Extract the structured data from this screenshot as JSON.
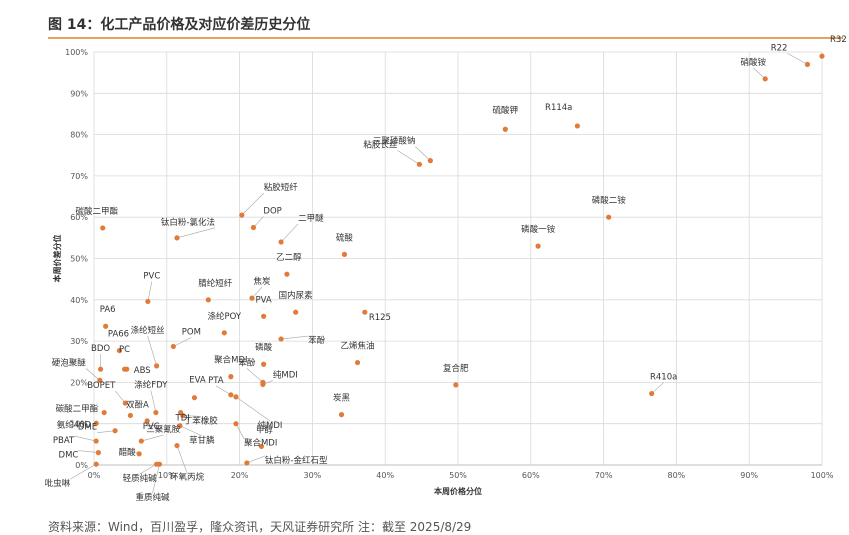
{
  "header": {
    "title": "图 14：化工产品价格及对应价差历史分位"
  },
  "footer": {
    "source": "资料来源：Wind，百川盈孚，隆众资讯，天风证券研究所   注：截至 2025/8/29"
  },
  "chart_data": {
    "type": "scatter",
    "title": "图 14：化工产品价格及对应价差历史分位",
    "xlabel": "本周价格分位",
    "ylabel": "本周价差分位",
    "xlim": [
      0,
      1
    ],
    "ylim": [
      0,
      1
    ],
    "xticks": [
      "0%",
      "10%",
      "20%",
      "30%",
      "40%",
      "50%",
      "60%",
      "70%",
      "80%",
      "90%",
      "100%"
    ],
    "yticks": [
      "0%",
      "10%",
      "20%",
      "30%",
      "40%",
      "50%",
      "60%",
      "70%",
      "80%",
      "90%",
      "100%"
    ],
    "grid": true,
    "color": "#e07b39",
    "points": [
      {
        "label": "R22",
        "x": 0.98,
        "y": 0.97
      },
      {
        "label": "R32",
        "x": 1.0,
        "y": 0.99
      },
      {
        "label": "硝酸铵",
        "x": 0.922,
        "y": 0.935
      },
      {
        "label": "三聚磷酸钠",
        "x": 0.462,
        "y": 0.737
      },
      {
        "label": "硫酸钾",
        "x": 0.565,
        "y": 0.813
      },
      {
        "label": "R114a",
        "x": 0.664,
        "y": 0.821
      },
      {
        "label": "粘胶长丝",
        "x": 0.447,
        "y": 0.728
      },
      {
        "label": "粘胶短纤",
        "x": 0.203,
        "y": 0.605
      },
      {
        "label": "DOP",
        "x": 0.219,
        "y": 0.575
      },
      {
        "label": "二甲醚",
        "x": 0.257,
        "y": 0.54
      },
      {
        "label": "磷酸二铵",
        "x": 0.707,
        "y": 0.6
      },
      {
        "label": "碳酸二甲酯",
        "x": 0.012,
        "y": 0.574
      },
      {
        "label": "钛白粉-氯化法",
        "x": 0.114,
        "y": 0.55
      },
      {
        "label": "磷酸一铵",
        "x": 0.61,
        "y": 0.53
      },
      {
        "label": "硫酸",
        "x": 0.344,
        "y": 0.51
      },
      {
        "label": "PVC",
        "x": 0.074,
        "y": 0.396
      },
      {
        "label": "乙二醇",
        "x": 0.265,
        "y": 0.462
      },
      {
        "label": "腈纶短纤",
        "x": 0.157,
        "y": 0.4
      },
      {
        "label": "焦炭",
        "x": 0.217,
        "y": 0.404
      },
      {
        "label": "PVA",
        "x": 0.233,
        "y": 0.36
      },
      {
        "label": "国内尿素",
        "x": 0.277,
        "y": 0.37
      },
      {
        "label": "R125",
        "x": 0.372,
        "y": 0.37
      },
      {
        "label": "涤纶POY",
        "x": 0.179,
        "y": 0.32
      },
      {
        "label": "PA6",
        "x": 0.016,
        "y": 0.336
      },
      {
        "label": "涤纶短丝",
        "x": 0.086,
        "y": 0.24
      },
      {
        "label": "POM",
        "x": 0.109,
        "y": 0.287
      },
      {
        "label": "苯酚",
        "x": 0.257,
        "y": 0.305
      },
      {
        "label": "PA66",
        "x": 0.035,
        "y": 0.277
      },
      {
        "label": "乙烯焦油",
        "x": 0.362,
        "y": 0.248
      },
      {
        "label": "BDO",
        "x": 0.009,
        "y": 0.232
      },
      {
        "label": "PC",
        "x": 0.042,
        "y": 0.232
      },
      {
        "label": "ABS",
        "x": 0.045,
        "y": 0.232
      },
      {
        "label": "硬泡聚醚",
        "x": 0.008,
        "y": 0.205
      },
      {
        "label": "磷酸",
        "x": 0.233,
        "y": 0.244
      },
      {
        "label": "EVA",
        "x": 0.138,
        "y": 0.163
      },
      {
        "label": "聚合MDI",
        "x": 0.188,
        "y": 0.214
      },
      {
        "label": "复合肥",
        "x": 0.497,
        "y": 0.194
      },
      {
        "label": "R410a",
        "x": 0.766,
        "y": 0.173
      },
      {
        "label": "纯MDI",
        "x": 0.232,
        "y": 0.195
      },
      {
        "label": "苯酚",
        "x": 0.232,
        "y": 0.2
      },
      {
        "label": "BOPET",
        "x": 0.043,
        "y": 0.15
      },
      {
        "label": "涤纶FDY",
        "x": 0.085,
        "y": 0.127
      },
      {
        "label": "PTA",
        "x": 0.188,
        "y": 0.17
      },
      {
        "label": "纯MDI",
        "x": 0.195,
        "y": 0.165
      },
      {
        "label": "碳酸二甲酯",
        "x": 0.014,
        "y": 0.127
      },
      {
        "label": "双酚A",
        "x": 0.05,
        "y": 0.12
      },
      {
        "label": "TDI",
        "x": 0.119,
        "y": 0.127
      },
      {
        "label": "丁苯橡胶",
        "x": 0.122,
        "y": 0.12
      },
      {
        "label": "氨纶40D",
        "x": 0.003,
        "y": 0.101
      },
      {
        "label": "DME",
        "x": 0.029,
        "y": 0.083
      },
      {
        "label": "PVC",
        "x": 0.073,
        "y": 0.107
      },
      {
        "label": "草甘膦",
        "x": 0.118,
        "y": 0.095
      },
      {
        "label": "炭黑",
        "x": 0.34,
        "y": 0.122
      },
      {
        "label": "聚合MDI",
        "x": 0.195,
        "y": 0.1
      },
      {
        "label": "PBAT",
        "x": 0.003,
        "y": 0.058
      },
      {
        "label": "三聚氰胺",
        "x": 0.065,
        "y": 0.058
      },
      {
        "label": "甲醇",
        "x": 0.23,
        "y": 0.045
      },
      {
        "label": "醋酸",
        "x": 0.062,
        "y": 0.027
      },
      {
        "label": "DMC",
        "x": 0.006,
        "y": 0.03
      },
      {
        "label": "环氧丙烷",
        "x": 0.114,
        "y": 0.047
      },
      {
        "label": "钛白粉-金红石型",
        "x": 0.21,
        "y": 0.005
      },
      {
        "label": "轻质纯碱",
        "x": 0.086,
        "y": 0.002
      },
      {
        "label": "重质纯碱",
        "x": 0.09,
        "y": 0.002
      },
      {
        "label": "吡虫啉",
        "x": 0.003,
        "y": 0.002
      }
    ]
  }
}
